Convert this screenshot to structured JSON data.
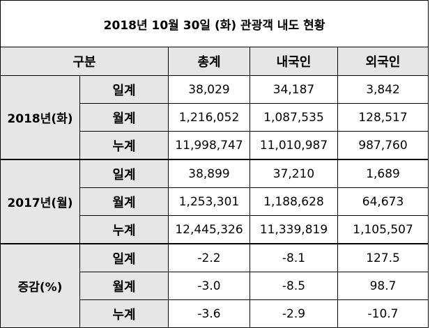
{
  "title": "2018년 10월 30일 (화) 관광객 내도 현황",
  "header": {
    "category": "구분",
    "total": "총계",
    "domestic": "내국인",
    "foreign": "외국인"
  },
  "groups": [
    {
      "label": "2018년(화)",
      "rows": [
        {
          "label": "일계",
          "total": "38,029",
          "domestic": "34,187",
          "foreign": "3,842"
        },
        {
          "label": "월계",
          "total": "1,216,052",
          "domestic": "1,087,535",
          "foreign": "128,517"
        },
        {
          "label": "누계",
          "total": "11,998,747",
          "domestic": "11,010,987",
          "foreign": "987,760"
        }
      ]
    },
    {
      "label": "2017년(월)",
      "rows": [
        {
          "label": "일계",
          "total": "38,899",
          "domestic": "37,210",
          "foreign": "1,689"
        },
        {
          "label": "월계",
          "total": "1,253,301",
          "domestic": "1,188,628",
          "foreign": "64,673"
        },
        {
          "label": "누계",
          "total": "12,445,326",
          "domestic": "11,339,819",
          "foreign": "1,105,507"
        }
      ]
    },
    {
      "label": "증감(%)",
      "rows": [
        {
          "label": "일계",
          "total": "-2.2",
          "domestic": "-8.1",
          "foreign": "127.5"
        },
        {
          "label": "월계",
          "total": "-3.0",
          "domestic": "-8.5",
          "foreign": "98.7"
        },
        {
          "label": "누계",
          "total": "-3.6",
          "domestic": "-2.9",
          "foreign": "-10.7"
        }
      ]
    }
  ]
}
